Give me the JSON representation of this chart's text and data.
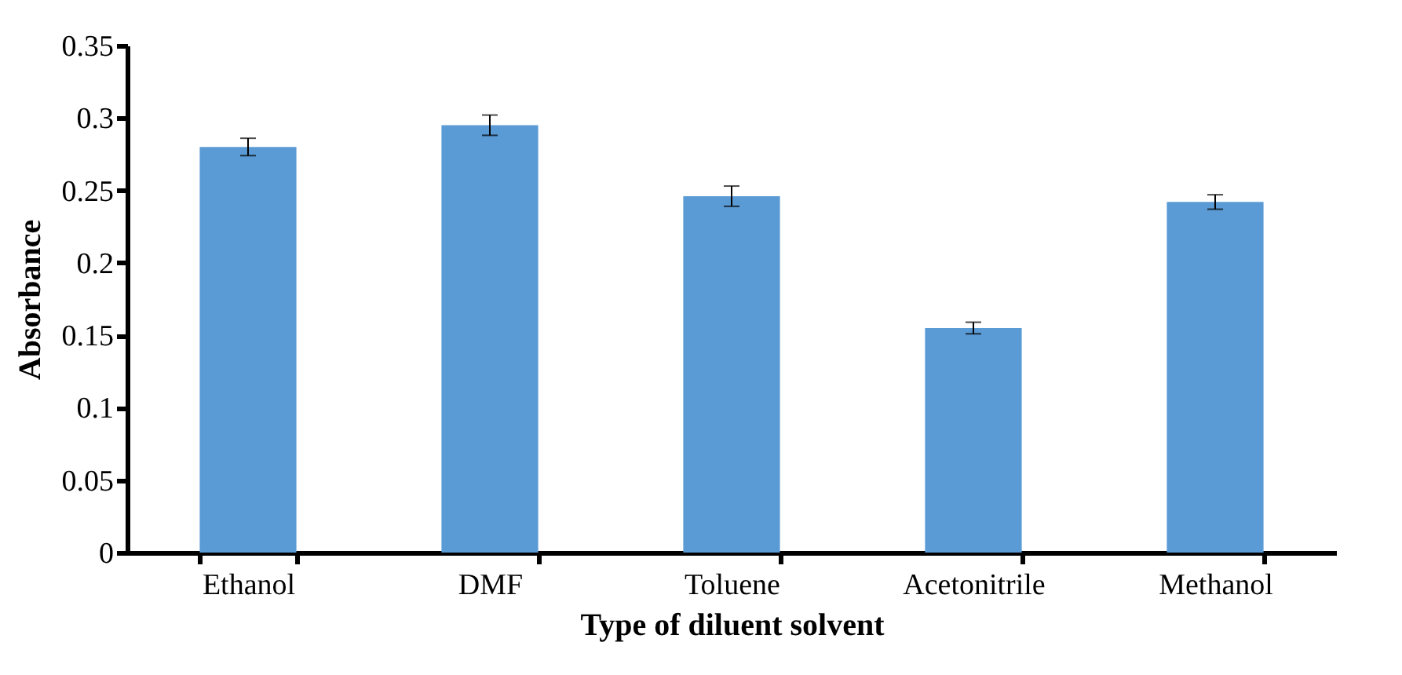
{
  "chart_data": {
    "type": "bar",
    "xlabel": "Type of diluent solvent",
    "ylabel": "Absorbance",
    "categories": [
      "Ethanol",
      "DMF",
      "Toluene",
      "Acetonitrile",
      "Methanol"
    ],
    "values": [
      0.28,
      0.295,
      0.246,
      0.155,
      0.242
    ],
    "errors": [
      0.006,
      0.007,
      0.007,
      0.004,
      0.005
    ],
    "color": "#5b9bd5",
    "ylim": [
      0,
      0.35
    ],
    "yticks": [
      0,
      0.05,
      0.1,
      0.15,
      0.2,
      0.25,
      0.3,
      0.35
    ],
    "grid": false
  }
}
